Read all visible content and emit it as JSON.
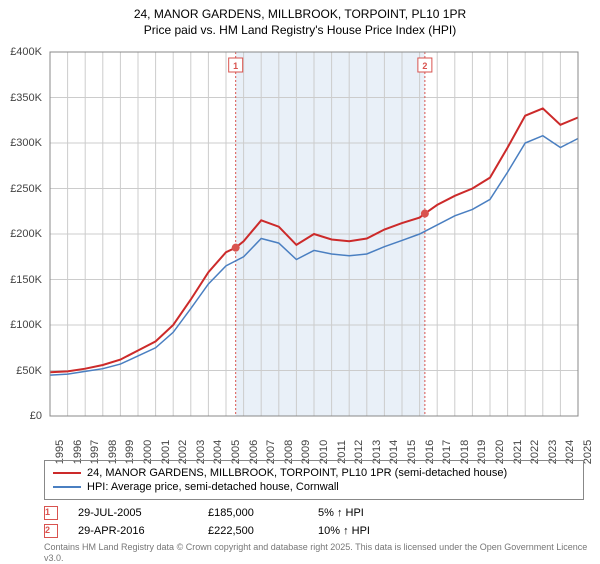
{
  "title": {
    "line1": "24, MANOR GARDENS, MILLBROOK, TORPOINT, PL10 1PR",
    "line2": "Price paid vs. HM Land Registry's House Price Index (HPI)"
  },
  "chart": {
    "type": "line",
    "x_start_year": 1995,
    "x_end_year": 2025,
    "ylim": [
      0,
      400000
    ],
    "ytick_step": 50000,
    "y_tick_labels": [
      "£0",
      "£50K",
      "£100K",
      "£150K",
      "£200K",
      "£250K",
      "£300K",
      "£350K",
      "£400K"
    ],
    "x_years": [
      1995,
      1996,
      1997,
      1998,
      1999,
      2000,
      2001,
      2002,
      2003,
      2004,
      2005,
      2006,
      2007,
      2008,
      2009,
      2010,
      2011,
      2012,
      2013,
      2014,
      2015,
      2016,
      2017,
      2018,
      2019,
      2020,
      2021,
      2022,
      2023,
      2024,
      2025
    ],
    "background_color": "#ffffff",
    "grid_color": "#cccccc",
    "highlight_band_color": "#e9f0f8",
    "highlight_band_start": 2005.55,
    "highlight_band_end": 2016.3,
    "marker_line_color": "#d9534f",
    "series": [
      {
        "name": "24, MANOR GARDENS, MILLBROOK, TORPOINT, PL10 1PR (semi-detached house)",
        "color": "#cc2a2a",
        "width": 2,
        "points": [
          [
            1995,
            48000
          ],
          [
            1996,
            49000
          ],
          [
            1997,
            52000
          ],
          [
            1998,
            56000
          ],
          [
            1999,
            62000
          ],
          [
            2000,
            72000
          ],
          [
            2001,
            82000
          ],
          [
            2002,
            100000
          ],
          [
            2003,
            128000
          ],
          [
            2004,
            158000
          ],
          [
            2005,
            180000
          ],
          [
            2005.55,
            185000
          ],
          [
            2006,
            192000
          ],
          [
            2007,
            215000
          ],
          [
            2008,
            208000
          ],
          [
            2009,
            188000
          ],
          [
            2010,
            200000
          ],
          [
            2011,
            194000
          ],
          [
            2012,
            192000
          ],
          [
            2013,
            195000
          ],
          [
            2014,
            205000
          ],
          [
            2015,
            212000
          ],
          [
            2016,
            218000
          ],
          [
            2016.3,
            222500
          ],
          [
            2017,
            232000
          ],
          [
            2018,
            242000
          ],
          [
            2019,
            250000
          ],
          [
            2020,
            262000
          ],
          [
            2021,
            295000
          ],
          [
            2022,
            330000
          ],
          [
            2023,
            338000
          ],
          [
            2024,
            320000
          ],
          [
            2025,
            328000
          ]
        ]
      },
      {
        "name": "HPI: Average price, semi-detached house, Cornwall",
        "color": "#4a7fc1",
        "width": 1.5,
        "points": [
          [
            1995,
            45000
          ],
          [
            1996,
            46000
          ],
          [
            1997,
            49000
          ],
          [
            1998,
            52000
          ],
          [
            1999,
            57000
          ],
          [
            2000,
            66000
          ],
          [
            2001,
            75000
          ],
          [
            2002,
            92000
          ],
          [
            2003,
            118000
          ],
          [
            2004,
            145000
          ],
          [
            2005,
            165000
          ],
          [
            2006,
            175000
          ],
          [
            2007,
            195000
          ],
          [
            2008,
            190000
          ],
          [
            2009,
            172000
          ],
          [
            2010,
            182000
          ],
          [
            2011,
            178000
          ],
          [
            2012,
            176000
          ],
          [
            2013,
            178000
          ],
          [
            2014,
            186000
          ],
          [
            2015,
            193000
          ],
          [
            2016,
            200000
          ],
          [
            2017,
            210000
          ],
          [
            2018,
            220000
          ],
          [
            2019,
            227000
          ],
          [
            2020,
            238000
          ],
          [
            2021,
            268000
          ],
          [
            2022,
            300000
          ],
          [
            2023,
            308000
          ],
          [
            2024,
            295000
          ],
          [
            2025,
            305000
          ]
        ]
      }
    ],
    "sale_markers": [
      {
        "idx": "1",
        "x": 2005.55,
        "y": 185000
      },
      {
        "idx": "2",
        "x": 2016.3,
        "y": 222500
      }
    ]
  },
  "legend": {
    "items": [
      {
        "color": "#cc2a2a",
        "label": "24, MANOR GARDENS, MILLBROOK, TORPOINT, PL10 1PR (semi-detached house)"
      },
      {
        "color": "#4a7fc1",
        "label": "HPI: Average price, semi-detached house, Cornwall"
      }
    ]
  },
  "sales": [
    {
      "idx": "1",
      "date": "29-JUL-2005",
      "price": "£185,000",
      "delta": "5% ↑ HPI",
      "marker_color": "#d9534f"
    },
    {
      "idx": "2",
      "date": "29-APR-2016",
      "price": "£222,500",
      "delta": "10% ↑ HPI",
      "marker_color": "#d9534f"
    }
  ],
  "copyright": "Contains HM Land Registry data © Crown copyright and database right 2025.\nThis data is licensed under the Open Government Licence v3.0."
}
